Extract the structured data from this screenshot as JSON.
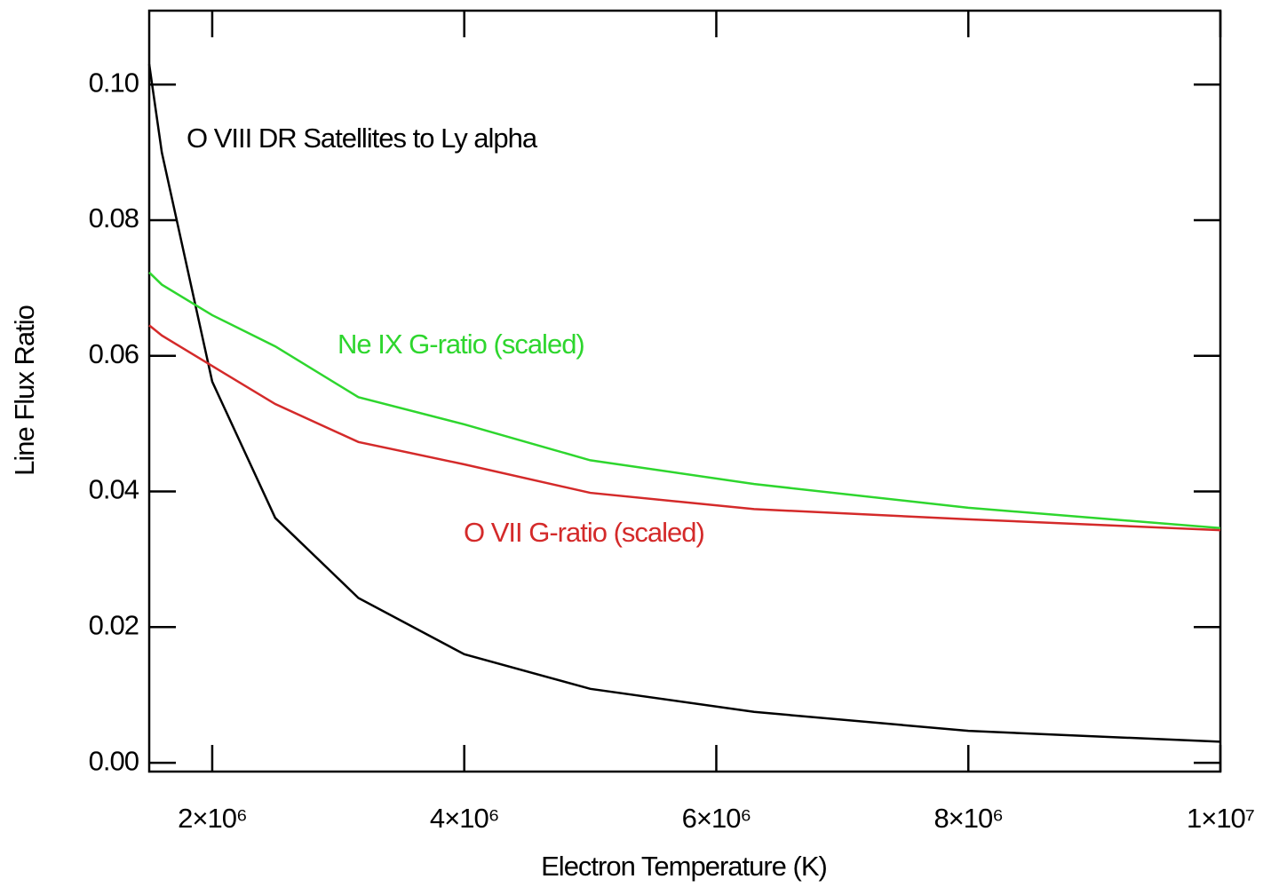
{
  "chart_data": {
    "type": "line",
    "xlabel": "Electron Temperature (K)",
    "ylabel": "Line Flux Ratio",
    "x": [
      1500000,
      1600000,
      2000000,
      2500000,
      3160000,
      4000000,
      5000000,
      6300000,
      8000000,
      10000000
    ],
    "series": [
      {
        "name": "O VIII DR Satellites to Ly alpha",
        "color": "#000000",
        "values": [
          0.103,
          0.09,
          0.0562,
          0.0361,
          0.0243,
          0.016,
          0.0109,
          0.0075,
          0.0047,
          0.0031
        ]
      },
      {
        "name": "Ne IX G-ratio (scaled)",
        "color": "#2ed62e",
        "values": [
          0.0723,
          0.0705,
          0.066,
          0.0614,
          0.0539,
          0.0499,
          0.0446,
          0.0411,
          0.0376,
          0.0346
        ]
      },
      {
        "name": "O VII G-ratio (scaled)",
        "color": "#d42a2a",
        "values": [
          0.0645,
          0.063,
          0.0585,
          0.0529,
          0.0473,
          0.044,
          0.0398,
          0.0374,
          0.0359,
          0.0343
        ]
      }
    ],
    "xlim": [
      1500000,
      10000000
    ],
    "ylim": [
      -0.0013,
      0.1109
    ],
    "xticks": [
      {
        "value": 2000000,
        "label": "2×10⁶"
      },
      {
        "value": 4000000,
        "label": "4×10⁶"
      },
      {
        "value": 6000000,
        "label": "6×10⁶"
      },
      {
        "value": 8000000,
        "label": "8×10⁶"
      },
      {
        "value": 10000000,
        "label": "1×10⁷"
      }
    ],
    "yticks": [
      {
        "value": 0,
        "label": "0.00"
      },
      {
        "value": 0.02,
        "label": "0.02"
      },
      {
        "value": 0.04,
        "label": "0.04"
      },
      {
        "value": 0.06,
        "label": "0.06"
      },
      {
        "value": 0.08,
        "label": "0.08"
      },
      {
        "value": 0.1,
        "label": "0.10"
      }
    ],
    "grid": false
  }
}
